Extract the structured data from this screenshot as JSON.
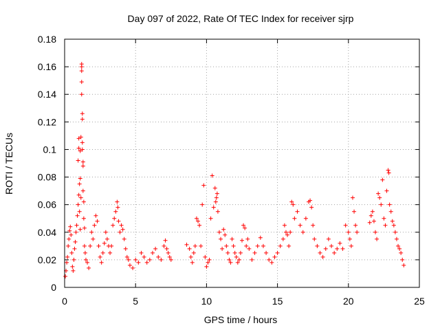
{
  "chart_data": {
    "type": "scatter",
    "title": "Day 097 of 2022, Rate Of TEC Index for receiver sjrp",
    "xlabel": "GPS time / hours",
    "ylabel": "ROTI / TECUs",
    "xlim": [
      0,
      25
    ],
    "ylim": [
      0,
      0.18
    ],
    "x_ticks": [
      0,
      5,
      10,
      15,
      20,
      25
    ],
    "x_tick_labels": [
      "0",
      "5",
      "10",
      "15",
      "20",
      "25"
    ],
    "y_ticks": [
      0,
      0.02,
      0.04,
      0.06,
      0.08,
      0.1,
      0.12,
      0.14,
      0.16,
      0.18
    ],
    "y_tick_labels": [
      "0",
      "0.02",
      "0.04",
      "0.06",
      "0.08",
      "0.1",
      "0.12",
      "0.14",
      "0.16",
      "0.18"
    ],
    "grid": true,
    "marker": "+",
    "color": "#ff0000",
    "series": [
      {
        "name": "ROTI",
        "points": [
          [
            0.05,
            0.008
          ],
          [
            0.1,
            0.012
          ],
          [
            0.15,
            0.018
          ],
          [
            0.2,
            0.022
          ],
          [
            0.25,
            0.03
          ],
          [
            0.3,
            0.035
          ],
          [
            0.35,
            0.041
          ],
          [
            0.4,
            0.044
          ],
          [
            0.45,
            0.038
          ],
          [
            0.5,
            0.025
          ],
          [
            0.55,
            0.015
          ],
          [
            0.6,
            0.012
          ],
          [
            0.65,
            0.02
          ],
          [
            0.7,
            0.028
          ],
          [
            0.75,
            0.033
          ],
          [
            0.8,
            0.04
          ],
          [
            0.85,
            0.045
          ],
          [
            0.9,
            0.052
          ],
          [
            0.95,
            0.06
          ],
          [
            0.95,
            0.092
          ],
          [
            1.0,
            0.108
          ],
          [
            1.0,
            0.101
          ],
          [
            1.0,
            0.067
          ],
          [
            1.05,
            0.075
          ],
          [
            1.05,
            0.055
          ],
          [
            1.1,
            0.099
          ],
          [
            1.1,
            0.079
          ],
          [
            1.1,
            0.042
          ],
          [
            1.15,
            0.109
          ],
          [
            1.15,
            0.065
          ],
          [
            1.2,
            0.16
          ],
          [
            1.2,
            0.162
          ],
          [
            1.2,
            0.157
          ],
          [
            1.2,
            0.149
          ],
          [
            1.2,
            0.14
          ],
          [
            1.25,
            0.126
          ],
          [
            1.25,
            0.122
          ],
          [
            1.25,
            0.105
          ],
          [
            1.25,
            0.1
          ],
          [
            1.3,
            0.091
          ],
          [
            1.3,
            0.088
          ],
          [
            1.3,
            0.07
          ],
          [
            1.35,
            0.062
          ],
          [
            1.35,
            0.05
          ],
          [
            1.4,
            0.043
          ],
          [
            1.4,
            0.03
          ],
          [
            1.45,
            0.025
          ],
          [
            1.5,
            0.02
          ],
          [
            1.6,
            0.018
          ],
          [
            1.7,
            0.014
          ],
          [
            1.8,
            0.03
          ],
          [
            1.9,
            0.04
          ],
          [
            2.0,
            0.035
          ],
          [
            2.1,
            0.045
          ],
          [
            2.2,
            0.052
          ],
          [
            2.3,
            0.048
          ],
          [
            2.4,
            0.03
          ],
          [
            2.5,
            0.022
          ],
          [
            2.6,
            0.018
          ],
          [
            2.7,
            0.025
          ],
          [
            2.8,
            0.032
          ],
          [
            2.9,
            0.04
          ],
          [
            3.0,
            0.035
          ],
          [
            3.1,
            0.03
          ],
          [
            3.2,
            0.025
          ],
          [
            3.3,
            0.03
          ],
          [
            3.4,
            0.045
          ],
          [
            3.5,
            0.05
          ],
          [
            3.6,
            0.055
          ],
          [
            3.7,
            0.062
          ],
          [
            3.75,
            0.058
          ],
          [
            3.8,
            0.048
          ],
          [
            3.9,
            0.04
          ],
          [
            4.0,
            0.045
          ],
          [
            4.1,
            0.042
          ],
          [
            4.2,
            0.035
          ],
          [
            4.3,
            0.028
          ],
          [
            4.4,
            0.022
          ],
          [
            4.5,
            0.02
          ],
          [
            4.6,
            0.016
          ],
          [
            4.8,
            0.014
          ],
          [
            5.0,
            0.02
          ],
          [
            5.2,
            0.018
          ],
          [
            5.4,
            0.025
          ],
          [
            5.6,
            0.022
          ],
          [
            5.8,
            0.018
          ],
          [
            6.0,
            0.02
          ],
          [
            6.2,
            0.025
          ],
          [
            6.4,
            0.028
          ],
          [
            6.6,
            0.022
          ],
          [
            6.8,
            0.02
          ],
          [
            7.0,
            0.03
          ],
          [
            7.1,
            0.034
          ],
          [
            7.2,
            0.028
          ],
          [
            7.3,
            0.025
          ],
          [
            7.4,
            0.022
          ],
          [
            7.5,
            0.02
          ],
          [
            8.6,
            0.031
          ],
          [
            8.8,
            0.028
          ],
          [
            8.9,
            0.022
          ],
          [
            9.0,
            0.018
          ],
          [
            9.1,
            0.025
          ],
          [
            9.2,
            0.03
          ],
          [
            9.3,
            0.05
          ],
          [
            9.4,
            0.048
          ],
          [
            9.5,
            0.045
          ],
          [
            9.6,
            0.03
          ],
          [
            9.7,
            0.06
          ],
          [
            9.8,
            0.074
          ],
          [
            9.9,
            0.022
          ],
          [
            10.0,
            0.015
          ],
          [
            10.1,
            0.018
          ],
          [
            10.2,
            0.02
          ],
          [
            10.3,
            0.05
          ],
          [
            10.4,
            0.081
          ],
          [
            10.5,
            0.058
          ],
          [
            10.6,
            0.072
          ],
          [
            10.65,
            0.062
          ],
          [
            10.7,
            0.065
          ],
          [
            10.75,
            0.068
          ],
          [
            10.8,
            0.055
          ],
          [
            10.9,
            0.04
          ],
          [
            11.0,
            0.035
          ],
          [
            11.1,
            0.028
          ],
          [
            11.2,
            0.042
          ],
          [
            11.3,
            0.038
          ],
          [
            11.4,
            0.03
          ],
          [
            11.5,
            0.025
          ],
          [
            11.6,
            0.02
          ],
          [
            11.7,
            0.018
          ],
          [
            11.8,
            0.035
          ],
          [
            11.9,
            0.03
          ],
          [
            12.0,
            0.025
          ],
          [
            12.1,
            0.022
          ],
          [
            12.2,
            0.018
          ],
          [
            12.3,
            0.02
          ],
          [
            12.4,
            0.025
          ],
          [
            12.5,
            0.034
          ],
          [
            12.6,
            0.045
          ],
          [
            12.7,
            0.043
          ],
          [
            12.8,
            0.03
          ],
          [
            12.9,
            0.035
          ],
          [
            13.0,
            0.028
          ],
          [
            13.2,
            0.02
          ],
          [
            13.4,
            0.025
          ],
          [
            13.6,
            0.03
          ],
          [
            13.8,
            0.036
          ],
          [
            14.0,
            0.03
          ],
          [
            14.2,
            0.025
          ],
          [
            14.4,
            0.02
          ],
          [
            14.6,
            0.018
          ],
          [
            14.8,
            0.022
          ],
          [
            15.0,
            0.025
          ],
          [
            15.2,
            0.03
          ],
          [
            15.4,
            0.035
          ],
          [
            15.5,
            0.045
          ],
          [
            15.6,
            0.04
          ],
          [
            15.7,
            0.038
          ],
          [
            15.8,
            0.03
          ],
          [
            15.9,
            0.04
          ],
          [
            16.0,
            0.062
          ],
          [
            16.1,
            0.06
          ],
          [
            16.2,
            0.05
          ],
          [
            16.4,
            0.055
          ],
          [
            16.6,
            0.045
          ],
          [
            16.8,
            0.04
          ],
          [
            17.0,
            0.05
          ],
          [
            17.2,
            0.062
          ],
          [
            17.3,
            0.063
          ],
          [
            17.4,
            0.058
          ],
          [
            17.5,
            0.045
          ],
          [
            17.6,
            0.035
          ],
          [
            17.8,
            0.03
          ],
          [
            18.0,
            0.025
          ],
          [
            18.2,
            0.022
          ],
          [
            18.4,
            0.028
          ],
          [
            18.6,
            0.035
          ],
          [
            18.8,
            0.03
          ],
          [
            19.0,
            0.025
          ],
          [
            19.2,
            0.028
          ],
          [
            19.4,
            0.032
          ],
          [
            19.6,
            0.028
          ],
          [
            19.8,
            0.045
          ],
          [
            20.0,
            0.04
          ],
          [
            20.1,
            0.035
          ],
          [
            20.2,
            0.03
          ],
          [
            20.3,
            0.065
          ],
          [
            20.4,
            0.055
          ],
          [
            20.5,
            0.045
          ],
          [
            20.6,
            0.04
          ],
          [
            21.5,
            0.047
          ],
          [
            21.6,
            0.052
          ],
          [
            21.7,
            0.055
          ],
          [
            21.8,
            0.048
          ],
          [
            21.9,
            0.04
          ],
          [
            22.0,
            0.035
          ],
          [
            22.1,
            0.068
          ],
          [
            22.2,
            0.065
          ],
          [
            22.3,
            0.06
          ],
          [
            22.4,
            0.078
          ],
          [
            22.5,
            0.05
          ],
          [
            22.6,
            0.045
          ],
          [
            22.7,
            0.07
          ],
          [
            22.8,
            0.085
          ],
          [
            22.85,
            0.083
          ],
          [
            22.9,
            0.06
          ],
          [
            23.0,
            0.055
          ],
          [
            23.1,
            0.048
          ],
          [
            23.2,
            0.045
          ],
          [
            23.3,
            0.04
          ],
          [
            23.4,
            0.035
          ],
          [
            23.5,
            0.03
          ],
          [
            23.6,
            0.028
          ],
          [
            23.7,
            0.025
          ],
          [
            23.8,
            0.02
          ],
          [
            23.9,
            0.016
          ]
        ]
      }
    ]
  }
}
